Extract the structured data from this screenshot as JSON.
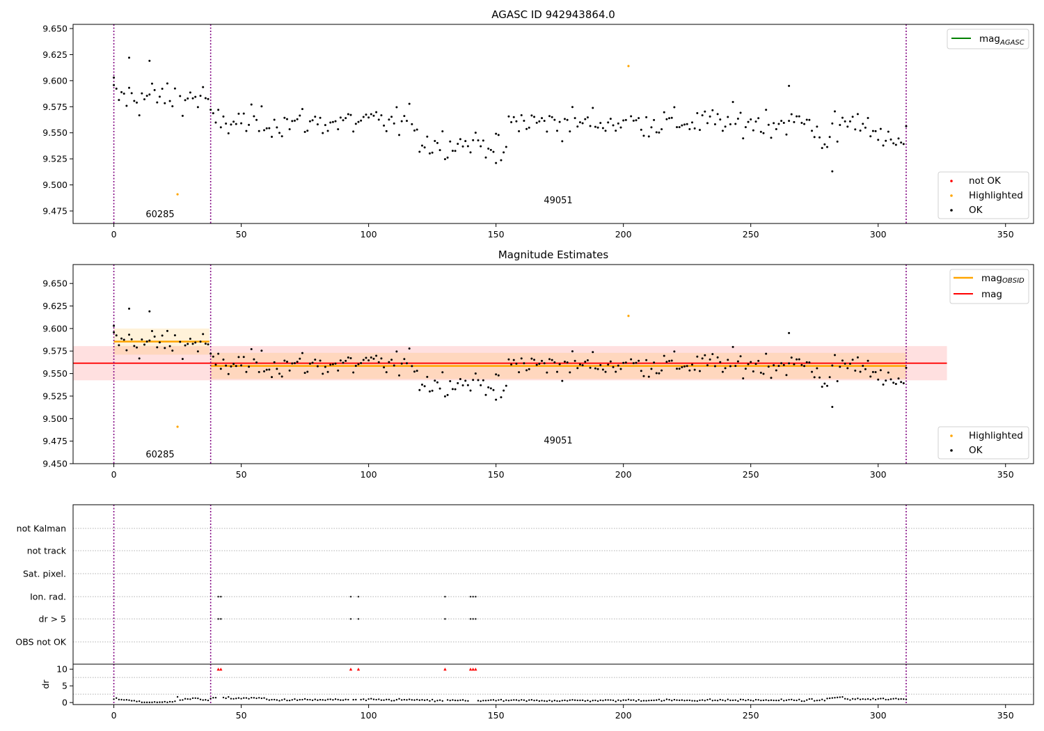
{
  "chart_data": [
    {
      "type": "scatter",
      "title": "AGASC ID 942943864.0",
      "xlabel": "",
      "ylabel": "",
      "xlim": [
        -16,
        361
      ],
      "ylim": [
        9.463,
        9.654
      ],
      "x_ticks": [
        0,
        50,
        100,
        150,
        200,
        250,
        300,
        350
      ],
      "y_ticks": [
        9.475,
        9.5,
        9.525,
        9.55,
        9.575,
        9.6,
        9.625,
        9.65
      ],
      "y_tick_labels": [
        "9.475",
        "9.500",
        "9.525",
        "9.550",
        "9.575",
        "9.600",
        "9.625",
        "9.650"
      ],
      "vlines": [
        0,
        38,
        311
      ],
      "annotations": [
        {
          "text": "60285",
          "x": 18.5,
          "y": 9.4695
        },
        {
          "text": "49051",
          "x": 174.5,
          "y": 9.4825
        }
      ],
      "legend_upper": {
        "placement": "upper-right",
        "entries": [
          {
            "label": "mag",
            "sub": "AGASC",
            "color": "#008000"
          }
        ]
      },
      "legend_lower": {
        "placement": "lower-right",
        "entries": [
          {
            "label": "not OK",
            "color": "#ff0000"
          },
          {
            "label": "Highlighted",
            "color": "#ffa500"
          },
          {
            "label": "OK",
            "color": "#000000"
          }
        ]
      },
      "series": [
        {
          "name": "Highlighted",
          "color": "#ffa500",
          "x": [
            25,
            202
          ],
          "y": [
            9.491,
            9.614
          ]
        }
      ]
    },
    {
      "type": "scatter",
      "title": "Magnitude Estimates",
      "xlabel": "",
      "ylabel": "",
      "xlim": [
        -16,
        361
      ],
      "ylim": [
        9.45,
        9.671
      ],
      "x_ticks": [
        0,
        50,
        100,
        150,
        200,
        250,
        300,
        350
      ],
      "y_ticks": [
        9.45,
        9.475,
        9.5,
        9.525,
        9.55,
        9.575,
        9.6,
        9.625,
        9.65
      ],
      "y_tick_labels": [
        "9.450",
        "9.475",
        "9.500",
        "9.525",
        "9.550",
        "9.575",
        "9.600",
        "9.625",
        "9.650"
      ],
      "vlines": [
        0,
        38,
        311
      ],
      "annotations": [
        {
          "text": "60285",
          "x": 18.5,
          "y": 9.4565
        },
        {
          "text": "49051",
          "x": 174.5,
          "y": 9.4725
        }
      ],
      "bands": [
        {
          "name": "mag",
          "color": "#ff0000",
          "x": [
            -16,
            327
          ],
          "y": 9.5615,
          "low": 9.5425,
          "high": 9.5805,
          "band_opacity": 0.12
        },
        {
          "name": "mag OBSID 60285",
          "color": "#ffa500",
          "x": [
            0,
            37.5
          ],
          "y": 9.5855,
          "low": 9.571,
          "high": 9.6,
          "band_opacity": 0.15
        },
        {
          "name": "mag OBSID 49051",
          "color": "#ffa500",
          "x": [
            38,
            311
          ],
          "y": 9.5585,
          "low": 9.544,
          "high": 9.573,
          "band_opacity": 0.15
        }
      ],
      "legend_upper": {
        "placement": "upper-right",
        "entries": [
          {
            "label": "mag",
            "sub": "OBSID",
            "color": "#ffa500"
          },
          {
            "label": "mag",
            "color": "#ff0000"
          }
        ]
      },
      "legend_lower": {
        "placement": "lower-right",
        "entries": [
          {
            "label": "Highlighted",
            "color": "#ffa500"
          },
          {
            "label": "OK",
            "color": "#000000"
          }
        ]
      },
      "series": [
        {
          "name": "Highlighted",
          "color": "#ffa500",
          "x": [
            25,
            202
          ],
          "y": [
            9.491,
            9.614
          ]
        }
      ]
    },
    {
      "type": "scatter",
      "title": "",
      "xlim": [
        -16,
        361
      ],
      "x_ticks": [
        0,
        50,
        100,
        150,
        200,
        250,
        300,
        350
      ],
      "vlines": [
        0,
        38,
        311
      ],
      "categories": [
        "not Kalman",
        "not track",
        "Sat. pixel.",
        "Ion. rad.",
        "dr > 5",
        "OBS not OK"
      ],
      "flags": [
        {
          "category": "Ion. rad.",
          "x": [
            41,
            42,
            93,
            96,
            130,
            140,
            141,
            142
          ]
        },
        {
          "category": "dr > 5",
          "x": [
            41,
            42,
            93,
            96,
            130,
            140,
            141,
            142
          ]
        }
      ]
    },
    {
      "type": "scatter",
      "title": "",
      "ylabel": "dr",
      "xlim": [
        -16,
        361
      ],
      "ylim": [
        -0.6,
        11.5
      ],
      "x_ticks": [
        0,
        50,
        100,
        150,
        200,
        250,
        300,
        350
      ],
      "y_ticks": [
        0,
        5,
        10
      ],
      "vlines": [
        0,
        38,
        311
      ],
      "clipped_marker_y": 10,
      "clipped_x": [
        41,
        42,
        93,
        96,
        130,
        140,
        141,
        142
      ],
      "clipped_color": "#ff0000"
    }
  ]
}
